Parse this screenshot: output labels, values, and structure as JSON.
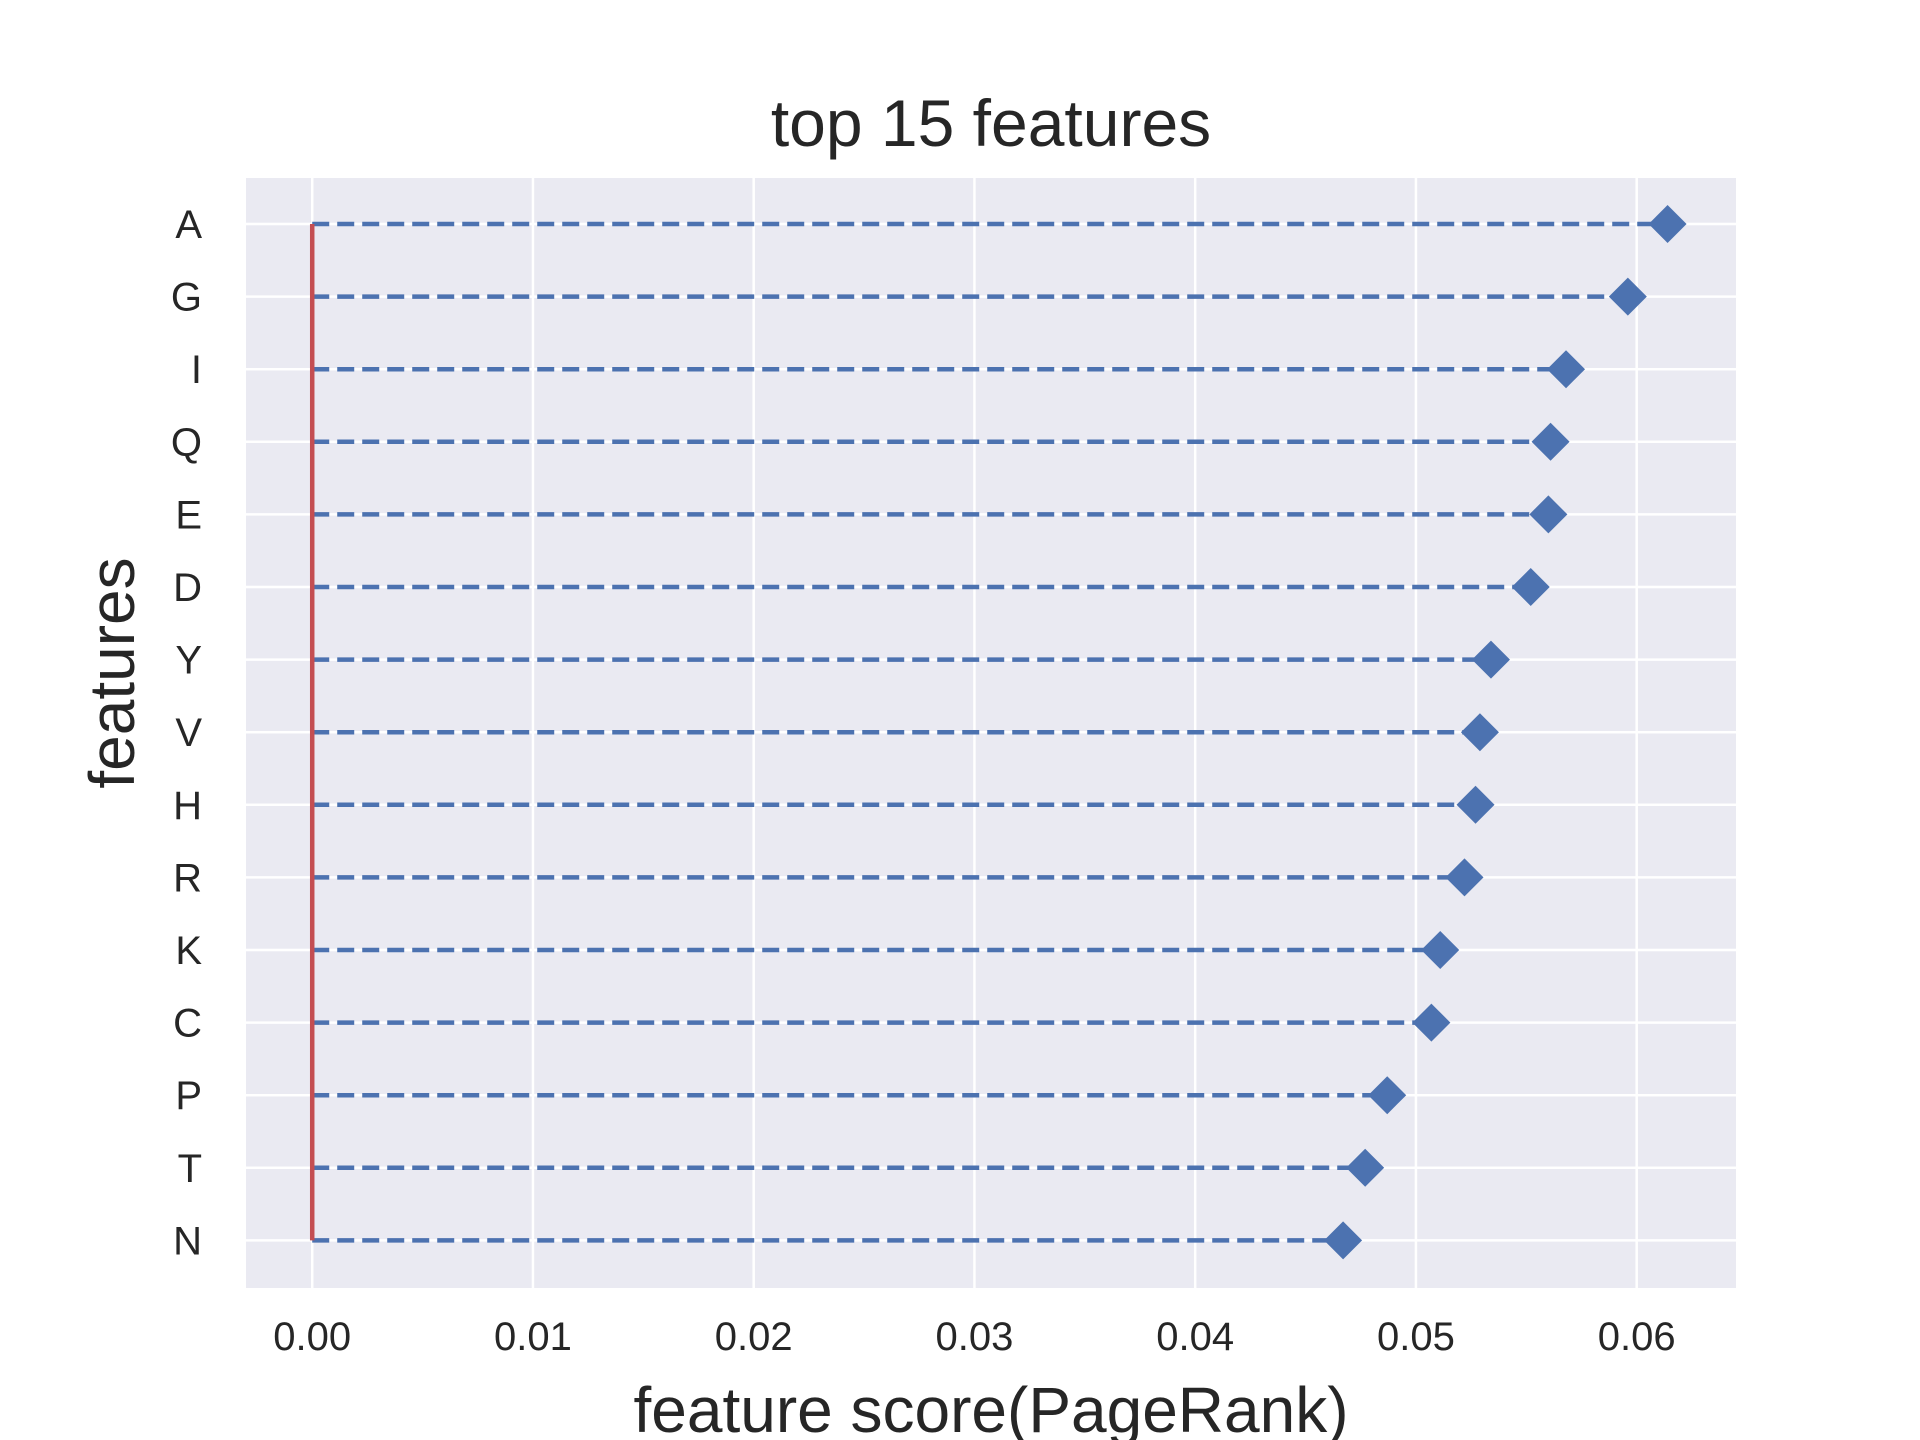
{
  "chart_data": {
    "type": "scatter",
    "title": "top 15 features",
    "xlabel": "feature score(PageRank)",
    "ylabel": "features",
    "categories": [
      "A",
      "G",
      "I",
      "Q",
      "E",
      "D",
      "Y",
      "V",
      "H",
      "R",
      "K",
      "C",
      "P",
      "T",
      "N"
    ],
    "values": [
      0.0614,
      0.0596,
      0.0568,
      0.0561,
      0.056,
      0.0552,
      0.0534,
      0.0529,
      0.0527,
      0.0522,
      0.0511,
      0.0507,
      0.0487,
      0.0477,
      0.0467
    ],
    "xlim": [
      -0.003,
      0.0645
    ],
    "xticks": [
      "0.00",
      "0.01",
      "0.02",
      "0.03",
      "0.04",
      "0.05",
      "0.06"
    ],
    "xtick_values": [
      0,
      0.01,
      0.02,
      0.03,
      0.04,
      0.05,
      0.06
    ],
    "grid": true,
    "marker": "diamond",
    "stem_line_style": "dashed",
    "colors": {
      "plot_background": "#eaeaf2",
      "grid": "#ffffff",
      "marker": "#4c72b0",
      "stem": "#4c72b0",
      "baseline": "#c44e52",
      "text": "#262626"
    }
  }
}
